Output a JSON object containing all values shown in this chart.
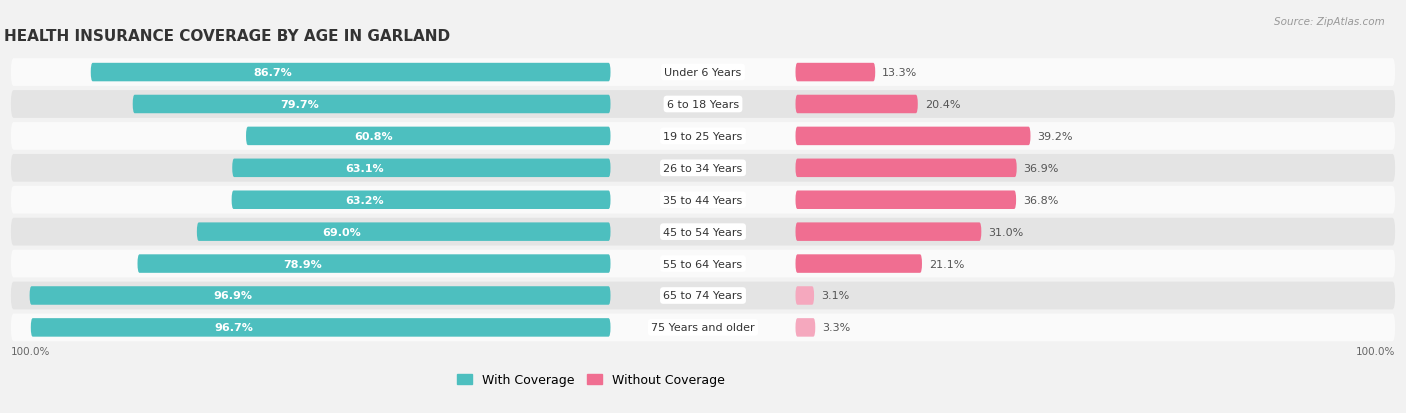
{
  "title": "HEALTH INSURANCE COVERAGE BY AGE IN GARLAND",
  "source": "Source: ZipAtlas.com",
  "categories": [
    "Under 6 Years",
    "6 to 18 Years",
    "19 to 25 Years",
    "26 to 34 Years",
    "35 to 44 Years",
    "45 to 54 Years",
    "55 to 64 Years",
    "65 to 74 Years",
    "75 Years and older"
  ],
  "with_coverage": [
    86.7,
    79.7,
    60.8,
    63.1,
    63.2,
    69.0,
    78.9,
    96.9,
    96.7
  ],
  "without_coverage": [
    13.3,
    20.4,
    39.2,
    36.9,
    36.8,
    31.0,
    21.1,
    3.1,
    3.3
  ],
  "color_with": "#4DBFBF",
  "color_without_high": "#F06E91",
  "color_without_low": "#F5A8BE",
  "without_low_threshold": 10.0,
  "bg_color": "#F2F2F2",
  "row_bg_color": "#E4E4E4",
  "row_bg_light": "#FAFAFA",
  "title_fontsize": 11,
  "label_fontsize": 8.5,
  "bar_label_fontsize": 8.0,
  "source_fontsize": 7.5,
  "legend_fontsize": 9
}
